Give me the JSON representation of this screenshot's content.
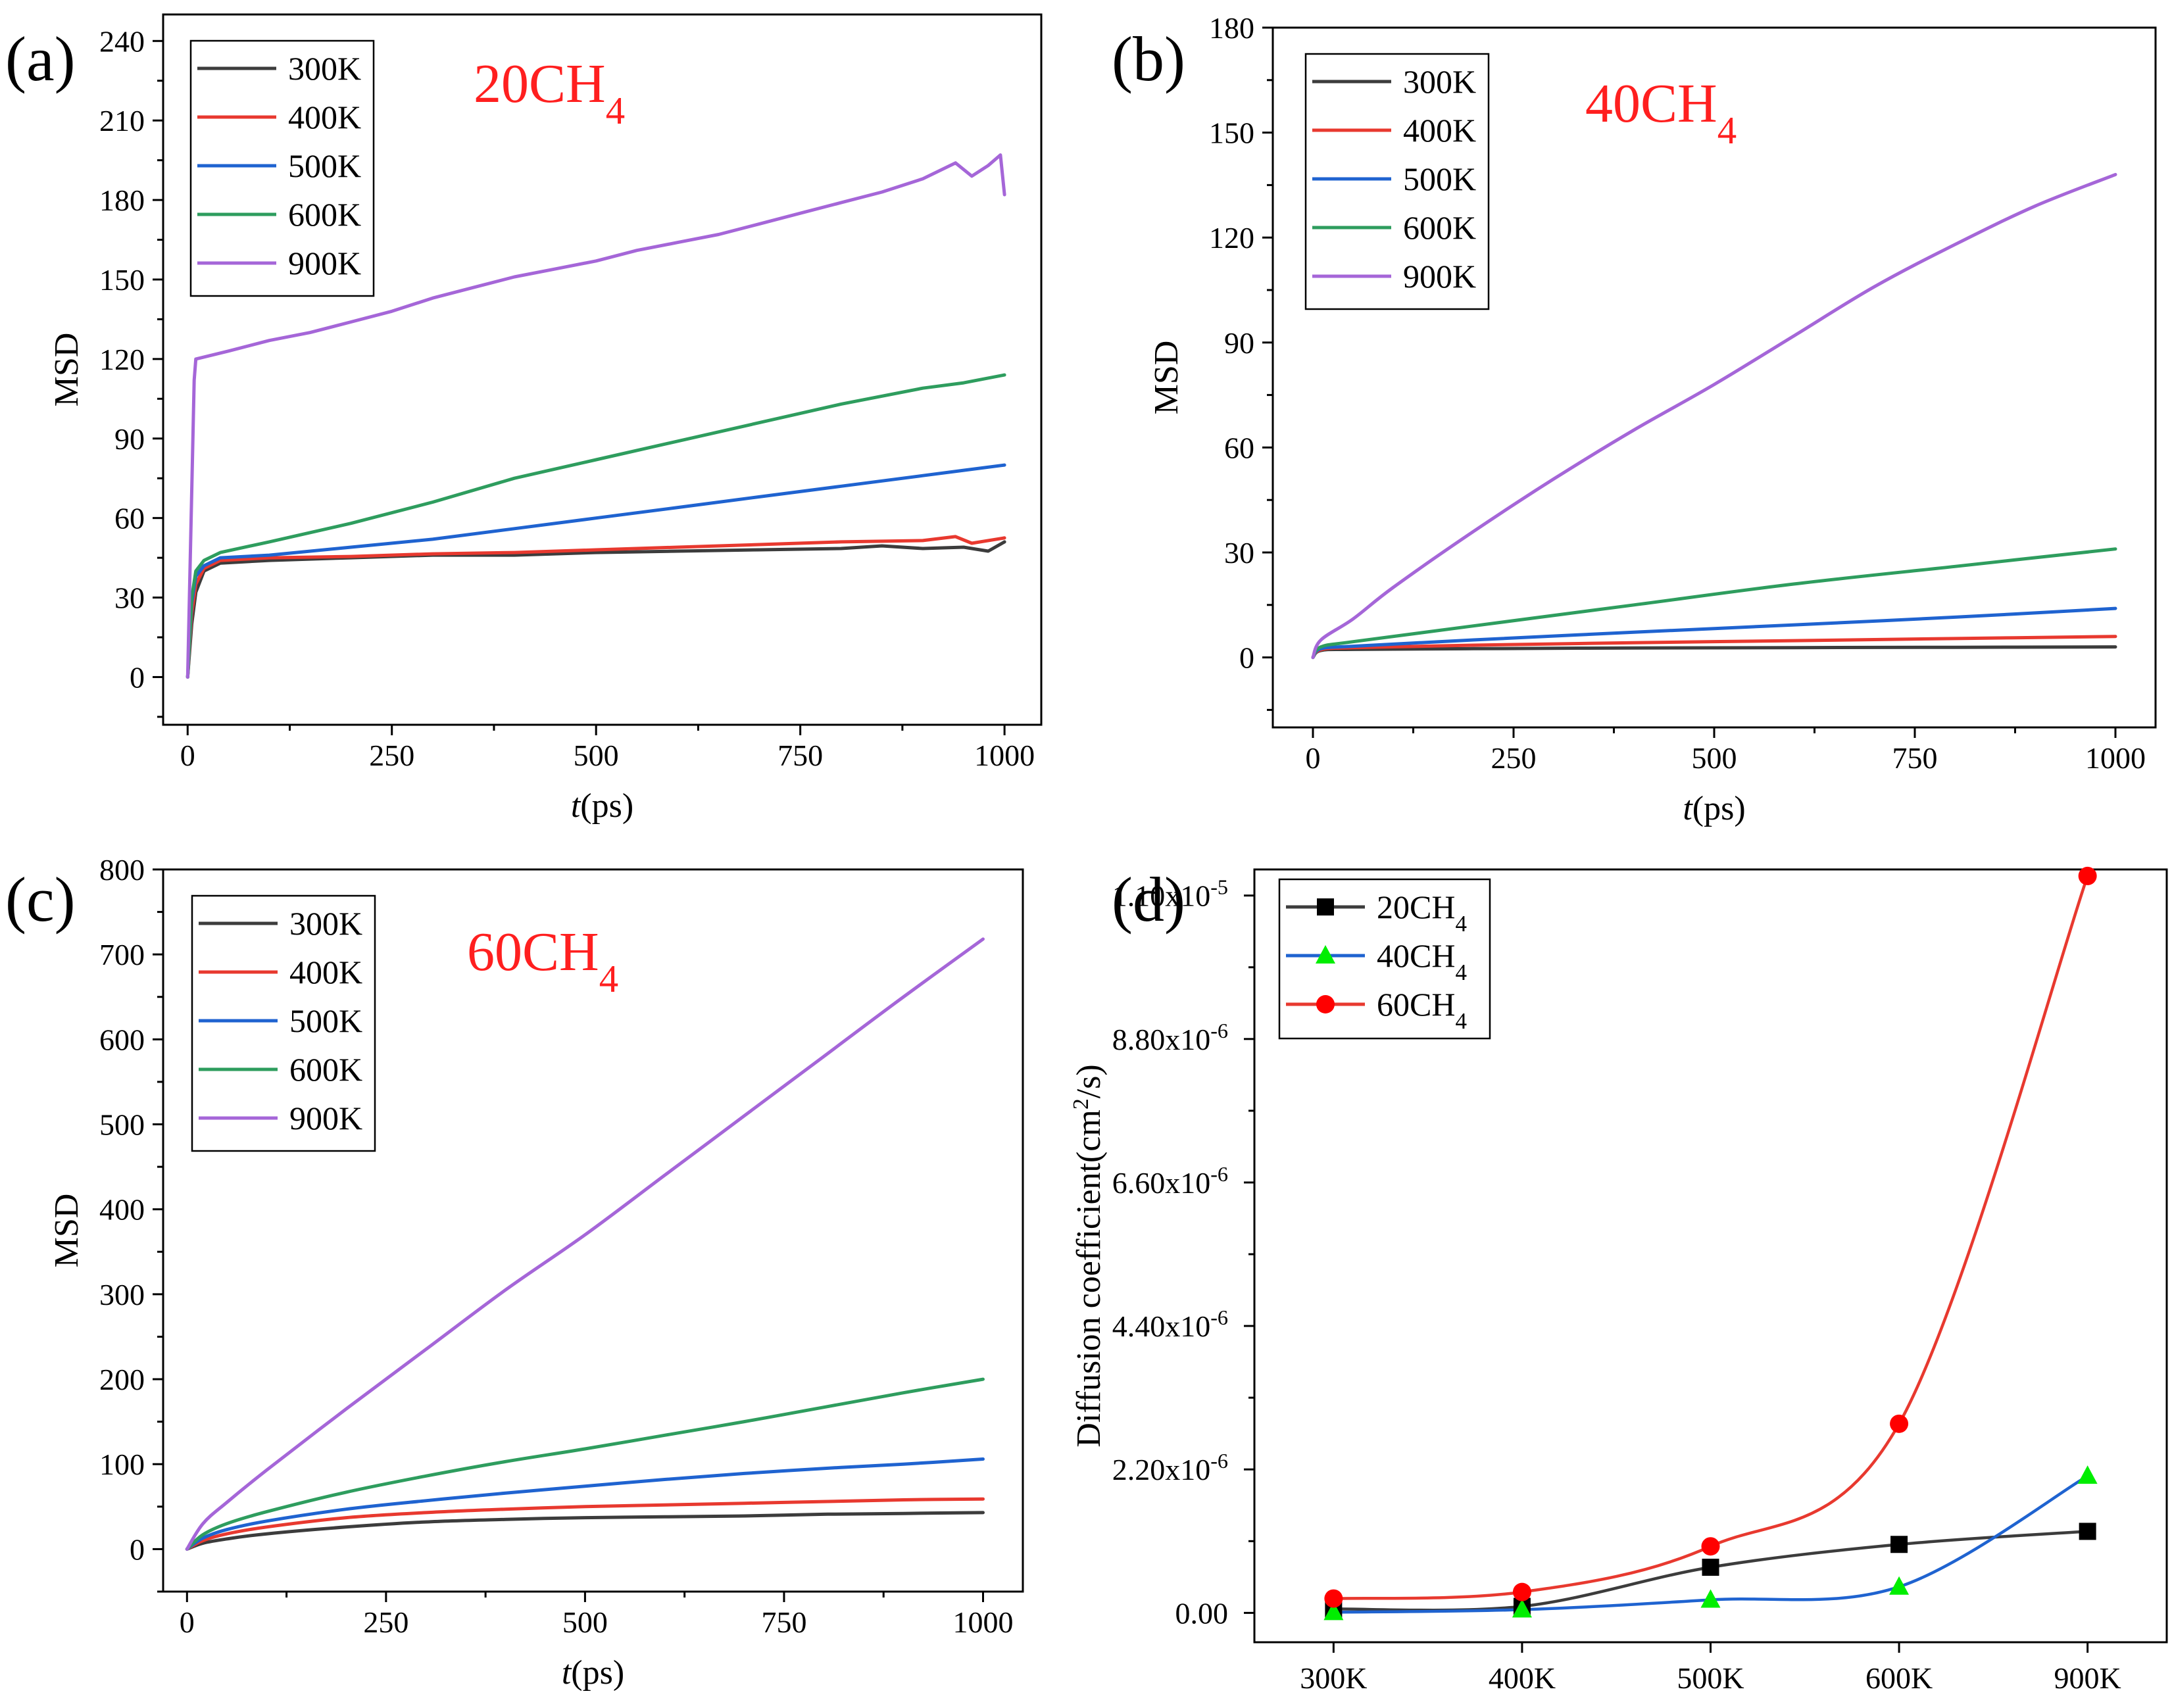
{
  "chart_data": [
    {
      "id": "a",
      "type": "line",
      "panel_label": "(a)",
      "title": "20CH",
      "title_sub": "4",
      "xlabel_italic": "t",
      "xlabel_rest": "(ps)",
      "ylabel": "MSD",
      "xlim": [
        -30,
        1045
      ],
      "ylim": [
        -18,
        250
      ],
      "xticks": [
        0,
        250,
        500,
        750,
        1000
      ],
      "yticks": [
        0,
        30,
        60,
        90,
        120,
        150,
        180,
        210,
        240
      ],
      "legend_position": "top-left",
      "series": [
        {
          "name": "300K",
          "color": "#3c3c3c",
          "x": [
            0,
            5,
            10,
            20,
            40,
            100,
            200,
            300,
            400,
            500,
            600,
            700,
            800,
            850,
            900,
            950,
            980,
            1000
          ],
          "y": [
            0,
            20,
            32,
            40,
            43,
            44,
            45,
            46,
            46,
            47,
            47.5,
            48,
            48.5,
            49.5,
            48.5,
            49,
            47.5,
            51
          ]
        },
        {
          "name": "400K",
          "color": "#e8392f",
          "x": [
            0,
            5,
            10,
            20,
            40,
            100,
            200,
            300,
            400,
            500,
            600,
            700,
            800,
            900,
            940,
            960,
            1000
          ],
          "y": [
            0,
            24,
            35,
            41,
            44,
            45,
            45.5,
            46.5,
            47,
            48,
            49,
            50,
            51,
            51.5,
            53,
            50.5,
            52.5
          ]
        },
        {
          "name": "500K",
          "color": "#1f63d0",
          "x": [
            0,
            5,
            10,
            20,
            40,
            100,
            200,
            300,
            400,
            500,
            600,
            700,
            800,
            900,
            950,
            1000
          ],
          "y": [
            0,
            28,
            38,
            42,
            45,
            46,
            49,
            52,
            56,
            60,
            64,
            68,
            72,
            76,
            78,
            80
          ]
        },
        {
          "name": "600K",
          "color": "#2e9d5e",
          "x": [
            0,
            5,
            10,
            20,
            40,
            100,
            200,
            300,
            400,
            500,
            600,
            700,
            800,
            900,
            950,
            1000
          ],
          "y": [
            0,
            30,
            40,
            44,
            47,
            51,
            58,
            66,
            75,
            82,
            89,
            96,
            103,
            109,
            111,
            114
          ]
        },
        {
          "name": "900K",
          "color": "#a566d8",
          "x": [
            0,
            8,
            10,
            50,
            100,
            150,
            200,
            250,
            300,
            350,
            400,
            450,
            500,
            550,
            600,
            650,
            700,
            750,
            800,
            850,
            900,
            940,
            960,
            980,
            995,
            1000
          ],
          "y": [
            0,
            112,
            120,
            123,
            127,
            130,
            134,
            138,
            143,
            147,
            151,
            154,
            157,
            161,
            164,
            167,
            171,
            175,
            179,
            183,
            188,
            194,
            189,
            193,
            197,
            182
          ]
        }
      ]
    },
    {
      "id": "b",
      "type": "line",
      "panel_label": "(b)",
      "title": "40CH",
      "title_sub": "4",
      "xlabel_italic": "t",
      "xlabel_rest": "(ps)",
      "ylabel": "MSD",
      "xlim": [
        -50,
        1050
      ],
      "ylim": [
        -20,
        180
      ],
      "xticks": [
        0,
        250,
        500,
        750,
        1000
      ],
      "yticks": [
        0,
        30,
        60,
        90,
        120,
        150,
        180
      ],
      "legend_position": "top-left",
      "series": [
        {
          "name": "300K",
          "color": "#3c3c3c",
          "x": [
            0,
            10,
            50,
            200,
            400,
            600,
            800,
            1000
          ],
          "y": [
            0,
            2,
            2.3,
            2.5,
            2.7,
            2.8,
            2.9,
            3
          ]
        },
        {
          "name": "400K",
          "color": "#e8392f",
          "x": [
            0,
            10,
            50,
            200,
            400,
            600,
            800,
            1000
          ],
          "y": [
            0,
            2.2,
            2.8,
            3.5,
            4.2,
            4.8,
            5.4,
            6
          ]
        },
        {
          "name": "500K",
          "color": "#1f63d0",
          "x": [
            0,
            10,
            50,
            200,
            400,
            600,
            800,
            1000
          ],
          "y": [
            0,
            2.5,
            3.2,
            5,
            7.2,
            9.3,
            11.5,
            14
          ]
        },
        {
          "name": "600K",
          "color": "#2e9d5e",
          "x": [
            0,
            10,
            50,
            200,
            400,
            600,
            800,
            1000
          ],
          "y": [
            0,
            3,
            4.5,
            9,
            15,
            21,
            26,
            31
          ]
        },
        {
          "name": "900K",
          "color": "#a566d8",
          "x": [
            0,
            10,
            50,
            100,
            200,
            300,
            400,
            500,
            600,
            700,
            800,
            900,
            1000
          ],
          "y": [
            0,
            5,
            11,
            20,
            36,
            51,
            65,
            78,
            92,
            106,
            118,
            129,
            138
          ]
        }
      ]
    },
    {
      "id": "c",
      "type": "line",
      "panel_label": "(c)",
      "title": "60CH",
      "title_sub": "4",
      "xlabel_italic": "t",
      "xlabel_rest": "(ps)",
      "ylabel": "MSD",
      "xlim": [
        -30,
        1050
      ],
      "ylim": [
        -50,
        800
      ],
      "xticks": [
        0,
        250,
        500,
        750,
        1000
      ],
      "yticks": [
        0,
        100,
        200,
        300,
        400,
        500,
        600,
        700,
        800
      ],
      "legend_position": "top-left",
      "series": [
        {
          "name": "300K",
          "color": "#3c3c3c",
          "x": [
            0,
            20,
            50,
            100,
            200,
            300,
            400,
            500,
            600,
            700,
            800,
            900,
            1000
          ],
          "y": [
            0,
            7,
            12,
            18,
            26,
            32,
            35,
            37,
            38,
            39,
            41,
            42,
            43
          ]
        },
        {
          "name": "400K",
          "color": "#e8392f",
          "x": [
            0,
            20,
            50,
            100,
            200,
            300,
            400,
            500,
            600,
            700,
            800,
            900,
            1000
          ],
          "y": [
            0,
            10,
            18,
            26,
            37,
            43,
            47,
            50,
            52,
            54,
            56,
            58,
            59
          ]
        },
        {
          "name": "500K",
          "color": "#1f63d0",
          "x": [
            0,
            20,
            50,
            100,
            200,
            300,
            400,
            500,
            600,
            700,
            800,
            900,
            1000
          ],
          "y": [
            0,
            13,
            23,
            33,
            47,
            57,
            66,
            74,
            82,
            89,
            95,
            100,
            106
          ]
        },
        {
          "name": "600K",
          "color": "#2e9d5e",
          "x": [
            0,
            20,
            50,
            100,
            200,
            300,
            400,
            500,
            600,
            700,
            800,
            900,
            1000
          ],
          "y": [
            0,
            17,
            30,
            44,
            67,
            86,
            103,
            118,
            134,
            150,
            167,
            184,
            200
          ]
        },
        {
          "name": "900K",
          "color": "#a566d8",
          "x": [
            0,
            20,
            50,
            100,
            200,
            300,
            400,
            500,
            600,
            700,
            800,
            900,
            1000
          ],
          "y": [
            0,
            30,
            55,
            93,
            165,
            235,
            305,
            370,
            440,
            510,
            580,
            650,
            718
          ]
        }
      ]
    },
    {
      "id": "d",
      "type": "line",
      "panel_label": "(d)",
      "xlabel": "",
      "ylabel": "Diffusion coefficient(cm",
      "ylabel_sup": "2",
      "ylabel_rest": "/s)",
      "categories": [
        "300K",
        "400K",
        "500K",
        "600K",
        "900K"
      ],
      "ylim": [
        -4.5e-07,
        1.14e-05
      ],
      "yticks": [
        {
          "value": 0,
          "base": "0.00",
          "exp": ""
        },
        {
          "value": 2.2e-06,
          "base": "2.20x10",
          "exp": "-6"
        },
        {
          "value": 4.4e-06,
          "base": "4.40x10",
          "exp": "-6"
        },
        {
          "value": 6.6e-06,
          "base": "6.60x10",
          "exp": "-6"
        },
        {
          "value": 8.8e-06,
          "base": "8.80x10",
          "exp": "-6"
        },
        {
          "value": 1.1e-05,
          "base": "1.10x10",
          "exp": "-5"
        }
      ],
      "legend_position": "top-left",
      "series": [
        {
          "name": "20CH",
          "name_sub": "4",
          "color": "#3c3c3c",
          "marker": "square",
          "marker_color": "#000000",
          "values": [
            6e-08,
            1e-07,
            7e-07,
            1.05e-06,
            1.25e-06
          ]
        },
        {
          "name": "40CH",
          "name_sub": "4",
          "color": "#1f63d0",
          "marker": "triangle",
          "marker_color": "#00ee00",
          "values": [
            1e-08,
            5e-08,
            2e-07,
            4e-07,
            2.1e-06
          ]
        },
        {
          "name": "60CH",
          "name_sub": "4",
          "color": "#e8392f",
          "marker": "circle",
          "marker_color": "#ff0000",
          "values": [
            2.2e-07,
            3.2e-07,
            1.02e-06,
            2.9e-06,
            1.13e-05
          ]
        }
      ]
    }
  ]
}
